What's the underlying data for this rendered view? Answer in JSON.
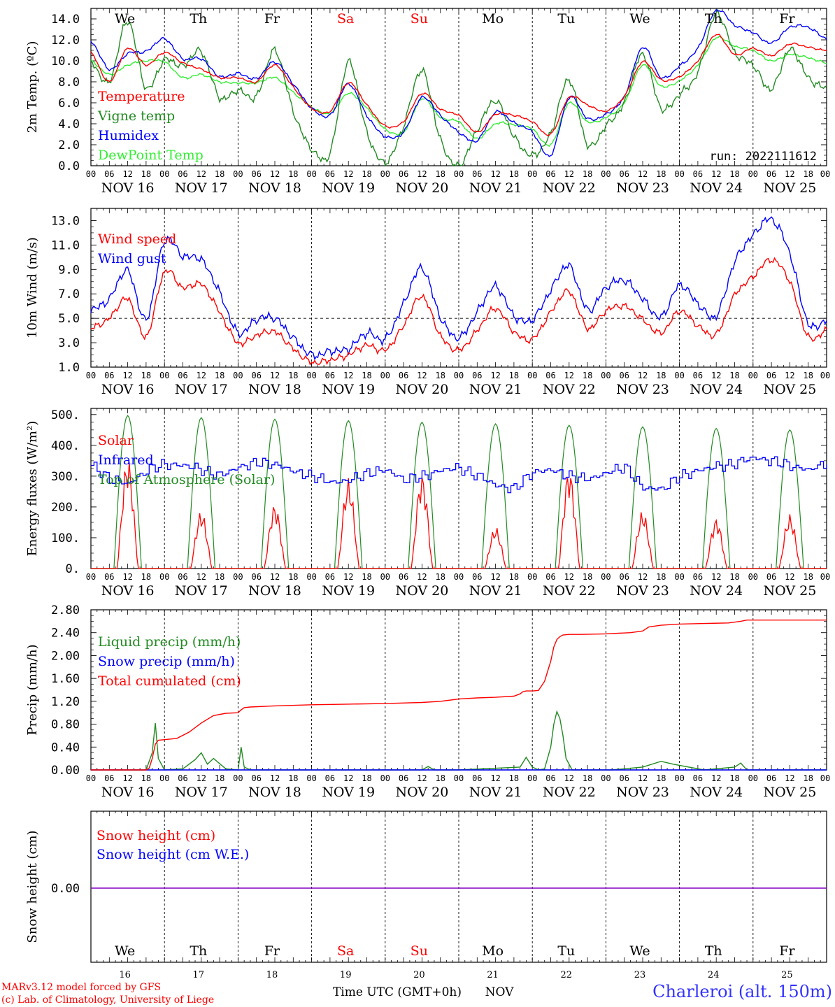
{
  "colors": {
    "temperature": "#ff0000",
    "vigne": "#228b22",
    "humidex": "#0000ff",
    "dewpoint": "#33ee33",
    "snow_line": "#8000c0",
    "red": "#ff0000",
    "blue": "#0000ff",
    "green": "#228b22",
    "location": "#3333ff"
  },
  "days": {
    "top": [
      "We",
      "Th",
      "Fr",
      "Sa",
      "Su",
      "Mo",
      "Tu",
      "We",
      "Th",
      "Fr"
    ],
    "weekend": [
      false,
      false,
      false,
      true,
      true,
      false,
      false,
      false,
      false,
      false
    ],
    "dates": [
      "NOV 16",
      "NOV 17",
      "NOV 18",
      "NOV 19",
      "NOV 20",
      "NOV 21",
      "NOV 22",
      "NOV 23",
      "NOV 24",
      "NOV 25"
    ],
    "numbers": [
      "16",
      "17",
      "18",
      "19",
      "20",
      "21",
      "22",
      "23",
      "24",
      "25"
    ],
    "hours": [
      "00",
      "06",
      "12",
      "18"
    ],
    "final_hour": "00"
  },
  "run_label": "run: 2022111612",
  "footer": {
    "model": "MARv3.12 model forced by GFS",
    "lab": "(c) Lab. of Climatology, University of Liege",
    "time_axis": "Time UTC (GMT+0h)",
    "month": "NOV",
    "location": "Charleroi (alt. 150m)"
  },
  "chart_data": [
    {
      "type": "line",
      "ylabel": "2m Temp. (ºC)",
      "ylim": [
        0,
        15
      ],
      "yticks": [
        0,
        2,
        4,
        6,
        8,
        10,
        12,
        14
      ],
      "tick_labels": [
        "0.0",
        "2.0",
        "4.0",
        "6.0",
        "8.0",
        "10.0",
        "12.0",
        "14.0"
      ],
      "x_unit": "hours since Nov 16 00 UTC",
      "x": [
        0,
        6,
        12,
        18,
        24,
        30,
        36,
        42,
        48,
        54,
        60,
        66,
        72,
        78,
        84,
        90,
        96,
        102,
        108,
        114,
        120,
        126,
        132,
        138,
        144,
        150,
        156,
        162,
        168,
        174,
        180,
        186,
        192,
        198,
        204,
        210,
        216,
        222,
        228,
        234,
        240
      ],
      "series": [
        {
          "name": "Temperature",
          "color": "#ff0000",
          "values": [
            10.8,
            8.0,
            11.2,
            9.6,
            10.8,
            9.8,
            9.2,
            8.4,
            8.4,
            8.0,
            9.6,
            7.5,
            5.5,
            5.2,
            7.9,
            5.8,
            3.8,
            4.2,
            6.9,
            5.4,
            4.8,
            3.2,
            4.9,
            4.8,
            4.2,
            3.0,
            6.5,
            5.8,
            5.2,
            6.6,
            9.9,
            8.2,
            8.5,
            10.0,
            12.5,
            10.6,
            11.2,
            10.5,
            11.6,
            11.3,
            11.0
          ]
        },
        {
          "name": "Vigne temp",
          "color": "#228b22",
          "values": [
            9.9,
            8.0,
            13.8,
            7.4,
            10.1,
            9.5,
            10.9,
            6.5,
            7.2,
            6.6,
            11.0,
            5.2,
            1.6,
            1.2,
            9.9,
            3.2,
            0.3,
            3.8,
            9.1,
            2.5,
            0.0,
            3.4,
            6.2,
            2.8,
            1.0,
            3.1,
            8.2,
            2.0,
            3.8,
            6.0,
            10.6,
            5.5,
            6.8,
            8.9,
            14.5,
            10.8,
            9.6,
            7.3,
            11.1,
            8.4,
            7.4
          ]
        },
        {
          "name": "Humidex",
          "color": "#0000ff",
          "values": [
            11.9,
            9.2,
            10.7,
            10.9,
            12.1,
            10.2,
            10.2,
            8.5,
            8.8,
            8.3,
            9.9,
            7.8,
            5.5,
            4.8,
            7.8,
            4.8,
            2.8,
            3.2,
            6.5,
            4.8,
            3.2,
            2.4,
            5.1,
            4.1,
            3.2,
            1.0,
            6.5,
            4.5,
            4.9,
            6.6,
            11.3,
            8.4,
            9.5,
            11.2,
            14.8,
            13.4,
            12.7,
            11.7,
            13.2,
            13.2,
            12.1
          ]
        },
        {
          "name": "DewPoint Temp",
          "color": "#33ee33",
          "values": [
            10.0,
            8.7,
            9.6,
            10.0,
            9.9,
            8.4,
            8.7,
            8.0,
            7.9,
            7.9,
            8.4,
            7.0,
            5.6,
            5.0,
            6.9,
            5.5,
            3.5,
            3.2,
            6.4,
            4.6,
            4.2,
            2.6,
            4.0,
            3.9,
            3.5,
            2.0,
            6.0,
            4.2,
            4.6,
            6.0,
            9.6,
            7.6,
            8.1,
            9.6,
            12.2,
            11.4,
            11.0,
            10.0,
            10.6,
            10.3,
            9.8
          ]
        }
      ]
    },
    {
      "type": "line",
      "ylabel": "10m Wind (m/s)",
      "ylim": [
        1,
        14
      ],
      "yticks": [
        1,
        3,
        5,
        7,
        9,
        11,
        13
      ],
      "tick_labels": [
        "1.0",
        "3.0",
        "5.0",
        "7.0",
        "9.0",
        "11.0",
        "13.0"
      ],
      "reference_line": 5,
      "x_unit": "hours since Nov 16 00 UTC",
      "x": [
        0,
        6,
        12,
        18,
        24,
        30,
        36,
        42,
        48,
        54,
        60,
        66,
        72,
        78,
        84,
        90,
        96,
        102,
        108,
        114,
        120,
        126,
        132,
        138,
        144,
        150,
        156,
        162,
        168,
        174,
        180,
        186,
        192,
        198,
        204,
        210,
        216,
        222,
        228,
        234,
        240
      ],
      "series": [
        {
          "name": "Wind speed",
          "color": "#ff0000",
          "values": [
            4.2,
            5.0,
            6.6,
            3.5,
            8.8,
            7.5,
            7.8,
            5.5,
            3.0,
            3.6,
            3.9,
            2.5,
            1.4,
            1.6,
            2.0,
            2.8,
            2.4,
            4.4,
            6.8,
            3.6,
            2.4,
            4.0,
            5.8,
            3.9,
            3.3,
            5.5,
            7.2,
            4.2,
            5.6,
            6.0,
            4.9,
            3.8,
            5.6,
            4.4,
            3.7,
            6.9,
            8.4,
            9.8,
            8.0,
            3.5,
            4.0
          ]
        },
        {
          "name": "Wind gust",
          "color": "#0000ff",
          "values": [
            5.7,
            6.6,
            8.9,
            4.9,
            11.3,
            10.1,
            9.8,
            7.1,
            3.8,
            4.9,
            5.0,
            3.4,
            2.0,
            2.3,
            2.5,
            3.8,
            3.3,
            6.2,
            9.1,
            5.1,
            3.4,
            5.5,
            7.6,
            5.2,
            4.9,
            7.3,
            9.3,
            5.7,
            7.5,
            8.1,
            6.6,
            5.1,
            7.7,
            6.2,
            5.2,
            9.6,
            11.8,
            13.1,
            10.3,
            4.6,
            4.8
          ]
        }
      ]
    },
    {
      "type": "line",
      "ylabel": "Energy fluxes (W/m²)",
      "ylim": [
        0,
        520
      ],
      "yticks": [
        0,
        100,
        200,
        300,
        400,
        500
      ],
      "tick_labels": [
        "0.",
        "100.",
        "200.",
        "300.",
        "400.",
        "500."
      ],
      "x_unit": "hours since Nov 16 00 UTC",
      "daily": {
        "solar_peak": [
          310,
          160,
          180,
          250,
          265,
          115,
          280,
          160,
          140,
          150
        ],
        "toa_peak": [
          497,
          490,
          485,
          480,
          475,
          470,
          465,
          460,
          455,
          450
        ]
      },
      "series": [
        {
          "name": "Solar",
          "color": "#ff0000"
        },
        {
          "name": "Infrared",
          "color": "#0000ff",
          "x": [
            0,
            6,
            12,
            18,
            24,
            30,
            36,
            42,
            48,
            54,
            60,
            66,
            72,
            78,
            84,
            90,
            96,
            102,
            108,
            114,
            120,
            126,
            132,
            138,
            144,
            150,
            156,
            162,
            168,
            174,
            180,
            186,
            192,
            198,
            204,
            210,
            216,
            222,
            228,
            234,
            240
          ],
          "values": [
            335,
            290,
            275,
            320,
            340,
            335,
            320,
            300,
            330,
            345,
            340,
            315,
            300,
            280,
            285,
            310,
            320,
            290,
            300,
            320,
            325,
            300,
            270,
            260,
            315,
            320,
            300,
            290,
            310,
            330,
            260,
            260,
            300,
            320,
            330,
            340,
            360,
            350,
            335,
            320,
            345
          ]
        },
        {
          "name": "Top of Atmosphere (Solar)",
          "color": "#228b22"
        }
      ]
    },
    {
      "type": "line",
      "ylabel": "Precip (mm/h)",
      "ylim": [
        0,
        2.8
      ],
      "yticks": [
        0,
        0.4,
        0.8,
        1.2,
        1.6,
        2.0,
        2.4,
        2.8
      ],
      "tick_labels": [
        "0.00",
        "0.40",
        "0.80",
        "1.20",
        "1.60",
        "2.00",
        "2.40",
        "2.80"
      ],
      "x_unit": "hours since Nov 16 00 UTC",
      "series": [
        {
          "name": "Liquid precip (mm/h)",
          "color": "#228b22",
          "x": [
            0,
            18,
            20,
            21,
            22,
            24,
            30,
            34,
            36,
            38,
            40,
            44,
            48,
            49,
            50,
            52,
            60,
            96,
            108,
            110,
            112,
            120,
            140,
            142,
            144,
            146,
            148,
            150,
            151,
            152,
            153,
            154,
            155,
            157,
            160,
            170,
            180,
            186,
            190,
            200,
            210,
            212,
            214,
            240
          ],
          "values": [
            0,
            0,
            0.3,
            0.82,
            0.2,
            0,
            0.02,
            0.18,
            0.3,
            0.1,
            0.2,
            0.02,
            0,
            0.4,
            0.05,
            0,
            0,
            0,
            0,
            0.06,
            0,
            0,
            0.05,
            0.22,
            0.05,
            0,
            0.02,
            0.4,
            0.8,
            1.02,
            0.9,
            0.6,
            0.2,
            0,
            0,
            0,
            0.05,
            0.15,
            0.1,
            0,
            0.05,
            0.12,
            0,
            0
          ]
        },
        {
          "name": "Snow precip (mm/h)",
          "color": "#0000ff",
          "x": [
            0,
            240
          ],
          "values": [
            0,
            0
          ]
        },
        {
          "name": "Total cumulated (cm)",
          "color": "#ff0000",
          "x": [
            0,
            18,
            19,
            20,
            21,
            22,
            24,
            28,
            32,
            36,
            40,
            44,
            48,
            49,
            50,
            52,
            60,
            72,
            84,
            96,
            108,
            114,
            120,
            126,
            132,
            138,
            140,
            141,
            142,
            144,
            146,
            148,
            150,
            151,
            152,
            153,
            154,
            156,
            160,
            168,
            176,
            180,
            182,
            186,
            192,
            200,
            208,
            212,
            214,
            216,
            240
          ],
          "values": [
            0,
            0,
            0.03,
            0.2,
            0.45,
            0.52,
            0.53,
            0.55,
            0.66,
            0.82,
            0.95,
            0.99,
            1.0,
            1.05,
            1.09,
            1.1,
            1.12,
            1.14,
            1.15,
            1.16,
            1.18,
            1.2,
            1.24,
            1.26,
            1.27,
            1.29,
            1.33,
            1.37,
            1.38,
            1.38,
            1.39,
            1.55,
            1.9,
            2.15,
            2.28,
            2.33,
            2.36,
            2.37,
            2.37,
            2.38,
            2.4,
            2.43,
            2.5,
            2.53,
            2.55,
            2.56,
            2.57,
            2.6,
            2.62,
            2.62,
            2.62
          ]
        }
      ]
    },
    {
      "type": "line",
      "ylabel": "Snow height (cm)",
      "tick_labels": [
        "0.00"
      ],
      "x_unit": "hours since Nov 16 00 UTC",
      "series": [
        {
          "name": "Snow height (cm)",
          "color": "#ff0000",
          "x": [
            0,
            240
          ],
          "values": [
            0,
            0
          ]
        },
        {
          "name": "Snow height (cm W.E.)",
          "color": "#0000ff",
          "x": [
            0,
            240
          ],
          "values": [
            0,
            0
          ]
        }
      ]
    }
  ]
}
